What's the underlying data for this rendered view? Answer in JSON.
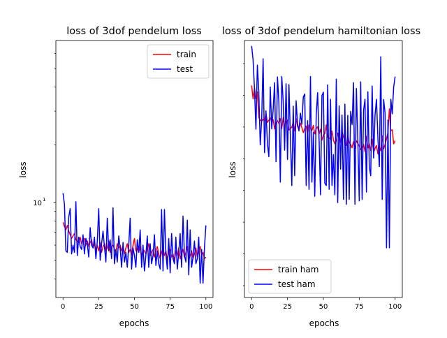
{
  "figure": {
    "background": "#ffffff"
  },
  "chart_data": [
    {
      "type": "line",
      "title": "loss of 3dof pendelum loss",
      "xlabel": "epochs",
      "ylabel": "loss",
      "yscale": "log",
      "xlim": [
        -5,
        105
      ],
      "ylim": [
        3.2,
        70
      ],
      "xticks": [
        0,
        25,
        50,
        75,
        100
      ],
      "ytick_labels": [
        {
          "value": 10,
          "label": "10",
          "exp": "1"
        }
      ],
      "y_minor_ticks": [
        4,
        5,
        6,
        7,
        8,
        9,
        20,
        30,
        40,
        50,
        60
      ],
      "legend": {
        "position": "top-right"
      },
      "series": [
        {
          "name": "train",
          "color": "#ff0000",
          "x": [
            0,
            1,
            2,
            3,
            4,
            5,
            6,
            7,
            8,
            9,
            10,
            11,
            12,
            13,
            14,
            15,
            16,
            17,
            18,
            19,
            20,
            21,
            22,
            23,
            24,
            25,
            26,
            27,
            28,
            29,
            30,
            31,
            32,
            33,
            34,
            35,
            36,
            37,
            38,
            39,
            40,
            41,
            42,
            43,
            44,
            45,
            46,
            47,
            48,
            49,
            50,
            51,
            52,
            53,
            54,
            55,
            56,
            57,
            58,
            59,
            60,
            61,
            62,
            63,
            64,
            65,
            66,
            67,
            68,
            69,
            70,
            71,
            72,
            73,
            74,
            75,
            76,
            77,
            78,
            79,
            80,
            81,
            82,
            83,
            84,
            85,
            86,
            87,
            88,
            89,
            90,
            91,
            92,
            93,
            94,
            95,
            96,
            97,
            98,
            99,
            100
          ],
          "values": [
            7.9,
            7.5,
            7.2,
            7.6,
            7.1,
            6.8,
            6.5,
            6.7,
            6.9,
            6.4,
            6.3,
            6.2,
            6.6,
            6.1,
            6.4,
            6.5,
            6.0,
            6.3,
            5.9,
            6.2,
            6.4,
            5.8,
            6.1,
            5.7,
            6.0,
            5.6,
            6.2,
            5.5,
            5.9,
            6.1,
            5.6,
            5.8,
            6.3,
            5.5,
            5.9,
            6.0,
            5.7,
            5.5,
            6.1,
            5.8,
            6.0,
            5.6,
            5.9,
            5.4,
            5.8,
            6.1,
            5.5,
            5.7,
            5.3,
            6.0,
            6.5,
            5.6,
            5.8,
            5.5,
            5.9,
            5.2,
            5.7,
            5.6,
            5.4,
            5.8,
            6.1,
            5.3,
            5.5,
            5.7,
            5.2,
            5.6,
            5.9,
            5.4,
            5.1,
            5.5,
            5.8,
            5.3,
            5.6,
            5.0,
            5.5,
            5.7,
            5.2,
            5.4,
            4.9,
            5.6,
            5.3,
            5.8,
            5.1,
            5.4,
            5.7,
            5.2,
            5.5,
            5.9,
            5.0,
            5.3,
            5.6,
            5.1,
            5.4,
            5.8,
            5.2,
            5.6,
            5.9,
            5.3,
            5.5,
            5.1,
            5.2
          ]
        },
        {
          "name": "test",
          "color": "#0000ff",
          "x": [
            0,
            1,
            2,
            3,
            4,
            5,
            6,
            7,
            8,
            9,
            10,
            11,
            12,
            13,
            14,
            15,
            16,
            17,
            18,
            19,
            20,
            21,
            22,
            23,
            24,
            25,
            26,
            27,
            28,
            29,
            30,
            31,
            32,
            33,
            34,
            35,
            36,
            37,
            38,
            39,
            40,
            41,
            42,
            43,
            44,
            45,
            46,
            47,
            48,
            49,
            50,
            51,
            52,
            53,
            54,
            55,
            56,
            57,
            58,
            59,
            60,
            61,
            62,
            63,
            64,
            65,
            66,
            67,
            68,
            69,
            70,
            71,
            72,
            73,
            74,
            75,
            76,
            77,
            78,
            79,
            80,
            81,
            82,
            83,
            84,
            85,
            86,
            87,
            88,
            89,
            90,
            91,
            92,
            93,
            94,
            95,
            96,
            97,
            98,
            99,
            100
          ],
          "values": [
            11.2,
            9.8,
            5.6,
            5.5,
            8.4,
            9.3,
            5.4,
            6.0,
            5.5,
            10.1,
            5.3,
            6.6,
            5.9,
            5.7,
            6.8,
            5.4,
            6.5,
            6.1,
            5.2,
            7.4,
            6.0,
            5.8,
            6.6,
            5.1,
            6.3,
            9.3,
            5.0,
            6.1,
            7.1,
            5.9,
            4.9,
            8.3,
            5.6,
            6.4,
            5.1,
            9.4,
            4.8,
            5.7,
            4.9,
            6.7,
            5.8,
            4.6,
            6.2,
            4.9,
            5.5,
            4.6,
            6.0,
            8.3,
            4.5,
            5.8,
            5.3,
            4.6,
            6.4,
            5.5,
            7.2,
            4.6,
            6.0,
            4.4,
            5.3,
            6.7,
            4.6,
            6.1,
            4.8,
            5.3,
            6.8,
            4.7,
            5.6,
            4.8,
            4.5,
            9.2,
            4.4,
            9.2,
            5.4,
            4.5,
            6.5,
            4.3,
            6.9,
            5.1,
            4.8,
            6.6,
            4.5,
            5.5,
            6.9,
            4.6,
            8.5,
            5.3,
            4.9,
            8.1,
            4.2,
            7.2,
            4.6,
            5.2,
            6.3,
            4.8,
            5.1,
            6.6,
            3.8,
            5.7,
            3.8,
            5.8,
            7.6
          ]
        }
      ]
    },
    {
      "type": "line",
      "title": "loss of 3dof pendelum hamiltonian loss",
      "xlabel": "epochs",
      "ylabel": "loss",
      "yscale": "log",
      "xlim": [
        -5,
        105
      ],
      "ylim": [
        0.5,
        70
      ],
      "xticks": [
        0,
        25,
        50,
        75,
        100
      ],
      "y_minor_tick_count": 8,
      "legend": {
        "position": "bottom-left"
      },
      "series": [
        {
          "name": "train ham",
          "color": "#ff0000",
          "x": [
            0,
            1,
            2,
            3,
            4,
            5,
            6,
            7,
            8,
            9,
            10,
            11,
            12,
            13,
            14,
            15,
            16,
            17,
            18,
            19,
            20,
            21,
            22,
            23,
            24,
            25,
            26,
            27,
            28,
            29,
            30,
            31,
            32,
            33,
            34,
            35,
            36,
            37,
            38,
            39,
            40,
            41,
            42,
            43,
            44,
            45,
            46,
            47,
            48,
            49,
            50,
            51,
            52,
            53,
            54,
            55,
            56,
            57,
            58,
            59,
            60,
            61,
            62,
            63,
            64,
            65,
            66,
            67,
            68,
            69,
            70,
            71,
            72,
            73,
            74,
            75,
            76,
            77,
            78,
            79,
            80,
            81,
            82,
            83,
            84,
            85,
            86,
            87,
            88,
            89,
            90,
            91,
            92,
            93,
            94,
            95,
            96,
            97,
            98,
            99,
            100
          ],
          "values": [
            29.5,
            22.8,
            28.0,
            22.8,
            26.1,
            15.9,
            15.2,
            14.8,
            15.4,
            15.0,
            17.2,
            14.5,
            15.1,
            15.8,
            14.7,
            15.3,
            12.8,
            14.5,
            15.0,
            14.2,
            15.6,
            12.9,
            15.9,
            13.0,
            14.8,
            15.2,
            12.5,
            12.9,
            13.2,
            14.7,
            12.3,
            15.6,
            13.4,
            12.6,
            14.3,
            13.1,
            11.9,
            12.8,
            13.5,
            11.5,
            13.8,
            13.0,
            12.4,
            13.7,
            11.6,
            12.9,
            13.3,
            11.6,
            12.7,
            10.3,
            11.4,
            11.7,
            13.8,
            10.9,
            10.7,
            10.5,
            12.3,
            10.3,
            9.6,
            10.2,
            11.8,
            10.4,
            9.9,
            12.2,
            11.0,
            10.0,
            9.3,
            11.3,
            9.8,
            9.5,
            8.9,
            10.0,
            8.8,
            10.2,
            9.7,
            9.2,
            8.6,
            9.0,
            9.5,
            8.3,
            11.1,
            8.9,
            9.6,
            8.4,
            10.5,
            8.1,
            8.8,
            9.3,
            7.9,
            9.1,
            8.4,
            11.2,
            8.7,
            9.5,
            10.6,
            12.0,
            18.8,
            12.3,
            12.6,
            9.6,
            10.2
          ]
        },
        {
          "name": "test ham",
          "color": "#0000ff",
          "x": [
            0,
            1,
            2,
            3,
            4,
            5,
            6,
            7,
            8,
            9,
            10,
            11,
            12,
            13,
            14,
            15,
            16,
            17,
            18,
            19,
            20,
            21,
            22,
            23,
            24,
            25,
            26,
            27,
            28,
            29,
            30,
            31,
            32,
            33,
            34,
            35,
            36,
            37,
            38,
            39,
            40,
            41,
            42,
            43,
            44,
            45,
            46,
            47,
            48,
            49,
            50,
            51,
            52,
            53,
            54,
            55,
            56,
            57,
            58,
            59,
            60,
            61,
            62,
            63,
            64,
            65,
            66,
            67,
            68,
            69,
            70,
            71,
            72,
            73,
            74,
            75,
            76,
            77,
            78,
            79,
            80,
            81,
            82,
            83,
            84,
            85,
            86,
            87,
            88,
            89,
            90,
            91,
            92,
            93,
            94,
            95,
            96,
            97,
            98,
            99,
            100
          ],
          "values": [
            63.0,
            48.4,
            27.6,
            12.7,
            43.6,
            26.1,
            9.4,
            15.2,
            49.3,
            8.1,
            18.1,
            9.7,
            7.5,
            28.6,
            12.8,
            18.6,
            31.1,
            6.8,
            34.7,
            21.4,
            4.6,
            35.0,
            21.6,
            8.5,
            30.5,
            7.1,
            30.0,
            11.0,
            4.3,
            19.8,
            5.2,
            22.0,
            14.1,
            12.3,
            17.3,
            14.0,
            23.6,
            25.0,
            4.3,
            15.0,
            4.0,
            35.0,
            4.6,
            12.0,
            3.5,
            16.5,
            25.7,
            10.4,
            3.6,
            24.3,
            25.9,
            4.5,
            4.3,
            29.8,
            4.0,
            22.6,
            4.3,
            7.8,
            3.6,
            33.3,
            3.1,
            19.9,
            5.9,
            16.7,
            3.3,
            20.6,
            3.0,
            16.6,
            3.3,
            17.9,
            13.9,
            31.1,
            3.0,
            27.8,
            10.3,
            3.2,
            31.6,
            3.3,
            18.3,
            22.6,
            3.8,
            26.1,
            6.2,
            5.2,
            29.2,
            7.3,
            16.7,
            22.6,
            10.7,
            6.2,
            51.2,
            3.3,
            22.5,
            17.3,
            1.3,
            15.2,
            1.3,
            22.6,
            17.1,
            28.8,
            35.0
          ]
        }
      ]
    }
  ]
}
